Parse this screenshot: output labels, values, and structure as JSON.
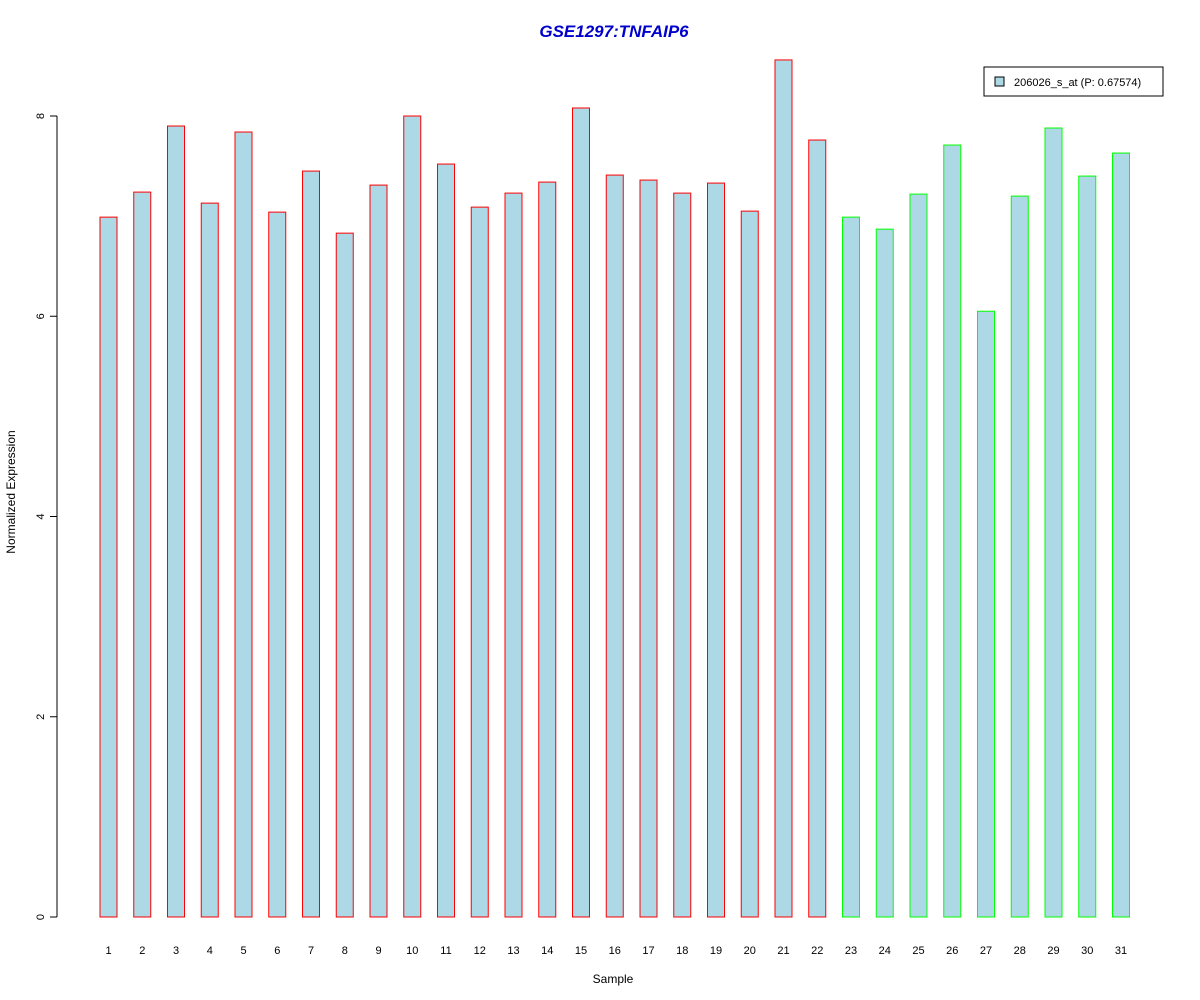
{
  "chart_data": {
    "type": "bar",
    "title": "GSE1297:TNFAIP6",
    "xlabel": "Sample",
    "ylabel": "Normalized Expression",
    "ylim": [
      0,
      8.5
    ],
    "yticks": [
      0,
      2,
      4,
      6,
      8
    ],
    "grid": false,
    "legend": {
      "placement": "top-right",
      "entries": [
        {
          "label": "206026_s_at (P: 0.67574)",
          "fill": "#add8e6"
        }
      ]
    },
    "bar_fill": "#add8e6",
    "groups": [
      {
        "samples": [
          "1",
          "2",
          "3",
          "4",
          "5",
          "6",
          "7",
          "8",
          "9",
          "10",
          "11",
          "12",
          "13",
          "14",
          "15",
          "16",
          "17",
          "18",
          "19",
          "20",
          "21",
          "22"
        ],
        "border": "#ff0000"
      },
      {
        "samples": [
          "23",
          "24",
          "25",
          "26",
          "27",
          "28",
          "29",
          "30",
          "31"
        ],
        "border": "#00ff00"
      }
    ],
    "categories": [
      "1",
      "2",
      "3",
      "4",
      "5",
      "6",
      "7",
      "8",
      "9",
      "10",
      "11",
      "12",
      "13",
      "14",
      "15",
      "16",
      "17",
      "18",
      "19",
      "20",
      "21",
      "22",
      "23",
      "24",
      "25",
      "26",
      "27",
      "28",
      "29",
      "30",
      "31"
    ],
    "values": [
      6.99,
      7.24,
      7.9,
      7.13,
      7.84,
      7.04,
      7.45,
      6.83,
      7.31,
      8.0,
      7.52,
      7.09,
      7.23,
      7.34,
      8.08,
      7.41,
      7.36,
      7.23,
      7.33,
      7.05,
      8.56,
      7.76,
      6.99,
      6.87,
      7.22,
      7.71,
      6.05,
      7.2,
      7.88,
      7.4,
      7.63
    ]
  }
}
